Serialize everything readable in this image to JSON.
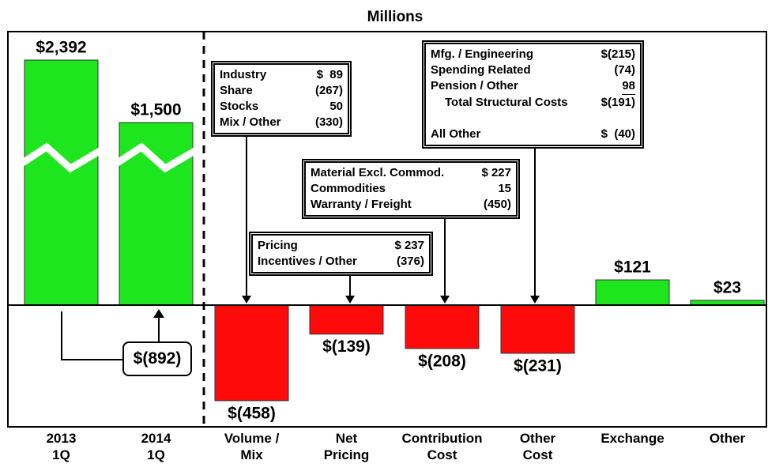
{
  "chart_data": {
    "type": "waterfall",
    "title": "Millions",
    "categories": [
      "2013\n1Q",
      "2014\n1Q",
      "Volume /\nMix",
      "Net\nPricing",
      "Contribution\nCost",
      "Other\nCost",
      "Exchange",
      "Other"
    ],
    "values": [
      2392,
      1500,
      -458,
      -139,
      -208,
      -231,
      121,
      23
    ],
    "value_labels": [
      "$2,392",
      "$1,500",
      "$(458)",
      "$(139)",
      "$(208)",
      "$(231)",
      "$121",
      "$23"
    ],
    "colors": {
      "positive": "#1ee61e",
      "negative": "#ff0a0a"
    },
    "broken_bars": [
      0,
      1
    ],
    "callout": "$(892)",
    "annotations": [
      {
        "bar": 2,
        "rows": [
          [
            "Industry",
            "$  89"
          ],
          [
            "Share",
            "(267)"
          ],
          [
            "Stocks",
            "50"
          ],
          [
            "Mix / Other",
            "(330)"
          ]
        ]
      },
      {
        "bar": 3,
        "rows": [
          [
            "Pricing",
            "$ 237"
          ],
          [
            "Incentives / Other",
            "(376)"
          ]
        ]
      },
      {
        "bar": 4,
        "rows": [
          [
            "Material Excl. Commod.",
            "$ 227"
          ],
          [
            "Commodities",
            "15"
          ],
          [
            "Warranty / Freight",
            "(450)"
          ]
        ]
      },
      {
        "bar": 5,
        "rows": [
          [
            "Mfg. / Engineering",
            "$(215)"
          ],
          [
            "Spending Related",
            "(74)"
          ],
          [
            "Pension / Other",
            "98"
          ],
          [
            "Total Structural Costs",
            "$(191)"
          ],
          [
            "All Other",
            "$  (40)"
          ]
        ]
      }
    ]
  }
}
